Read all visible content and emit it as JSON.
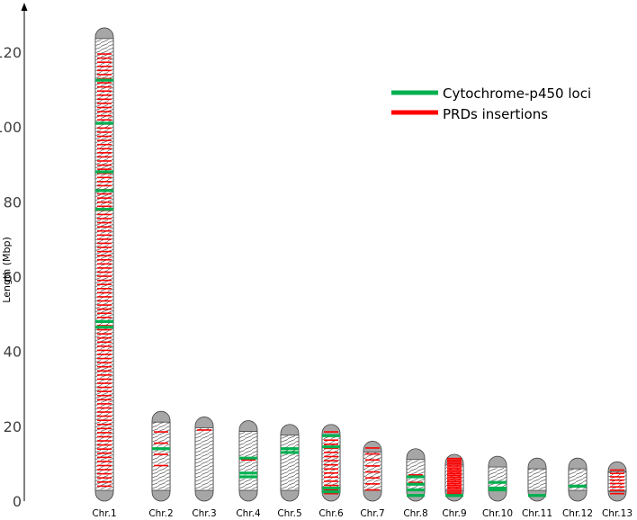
{
  "chart_data": {
    "type": "ideogram",
    "ylabel": "Length (Mbp)",
    "ylim": [
      0,
      126
    ],
    "yticks": [
      0,
      20,
      40,
      60,
      80,
      100,
      120
    ],
    "legend": {
      "placement": "top-right",
      "entries": [
        {
          "label": "Cytochrome-p450 loci",
          "color": "#00b050"
        },
        {
          "label": "PRDs insertions",
          "color": "#ff0000"
        }
      ]
    },
    "chromosomes": [
      {
        "name": "Chr.1",
        "length": 126.5,
        "p450": [
          112.5,
          101,
          88,
          83,
          78,
          48,
          46.5
        ],
        "prd_span": [
          4,
          120
        ],
        "prd_step": 1.1
      },
      {
        "name": "Chr.2",
        "length": 24,
        "p450": [
          14
        ],
        "prd_span": [
          9.5,
          19
        ],
        "prd_step": 3.0
      },
      {
        "name": "Chr.3",
        "length": 22.5,
        "p450": [],
        "prd_span": [
          19,
          19
        ],
        "prd_step": 1.0
      },
      {
        "name": "Chr.4",
        "length": 21.5,
        "p450": [
          11.5,
          7.5,
          6.5
        ],
        "prd_span": [
          11,
          11
        ],
        "prd_step": 1.0
      },
      {
        "name": "Chr.5",
        "length": 20.5,
        "p450": [
          14,
          13
        ],
        "prd_span": [
          13,
          14
        ],
        "prd_step": 1.0
      },
      {
        "name": "Chr.6",
        "length": 20.5,
        "p450": [
          17.5,
          14.5,
          3.5,
          2.5
        ],
        "prd_span": [
          2,
          18.5
        ],
        "prd_step": 1.1
      },
      {
        "name": "Chr.7",
        "length": 16,
        "p450": [],
        "prd_span": [
          3,
          14.5
        ],
        "prd_step": 1.6
      },
      {
        "name": "Chr.8",
        "length": 14,
        "p450": [
          6.5,
          4.5,
          3,
          1.5
        ],
        "prd_span": [
          3,
          7
        ],
        "prd_step": 2.0
      },
      {
        "name": "Chr.9",
        "length": 12.5,
        "p450": [
          1.5
        ],
        "prd_span": [
          1.5,
          11.5
        ],
        "prd_step": 0.45
      },
      {
        "name": "Chr.10",
        "length": 12,
        "p450": [
          5,
          3.5,
          3
        ],
        "prd_span": [
          3,
          5
        ],
        "prd_step": 2.0
      },
      {
        "name": "Chr.11",
        "length": 11.5,
        "p450": [
          1.5
        ],
        "prd_span": [
          1.5,
          1.5
        ],
        "prd_step": 1.0
      },
      {
        "name": "Chr.12",
        "length": 11.5,
        "p450": [
          4
        ],
        "prd_span": [
          4,
          4
        ],
        "prd_step": 1.0
      },
      {
        "name": "Chr.13",
        "length": 10.5,
        "p450": [],
        "prd_span": [
          2,
          8.5
        ],
        "prd_step": 0.9
      }
    ]
  },
  "colors": {
    "centromere": "#a6a6a6",
    "outline": "#404040",
    "hatch": "#595959",
    "axis": "#000000",
    "tick_label": "#404040"
  }
}
